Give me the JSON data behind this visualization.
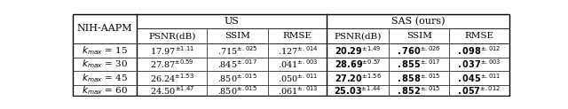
{
  "title_col": "NIH-AAPM",
  "us_header": "US",
  "sas_header": "SAS (ours)",
  "row_labels": [
    "$k_{max}$ = 15",
    "$k_{max}$ = 30",
    "$k_{max}$ = 45",
    "$k_{max}$ = 60"
  ],
  "us_data": [
    [
      "17.97",
      "1.11",
      ".715",
      ".025",
      ".127",
      ".014"
    ],
    [
      "27.87",
      "0.59",
      ".845",
      ".017",
      ".041",
      ".003"
    ],
    [
      "26.24",
      "1.53",
      ".850",
      ".015",
      ".050",
      ".011"
    ],
    [
      "24.50",
      "1.47",
      ".850",
      ".015",
      ".061",
      ".013"
    ]
  ],
  "sas_data": [
    [
      "20.29",
      "1.49",
      ".760",
      ".026",
      ".098",
      ".012"
    ],
    [
      "28.69",
      "0.57",
      ".855",
      ".017",
      ".037",
      ".003"
    ],
    [
      "27.20",
      "1.56",
      ".858",
      ".015",
      ".045",
      ".011"
    ],
    [
      "25.03",
      "1.44",
      ".852",
      ".015",
      ".057",
      ".012"
    ]
  ],
  "bg_color": "#ffffff",
  "line_color": "#000000",
  "text_color": "#000000",
  "col_bounds": [
    2,
    96,
    198,
    287,
    372,
    462,
    550,
    637
  ],
  "row_bounds": [
    121,
    100,
    79,
    58,
    38,
    18,
    2
  ],
  "fs_header": 8.0,
  "fs_sub": 7.5,
  "fs_data": 7.0,
  "fs_label": 7.5
}
